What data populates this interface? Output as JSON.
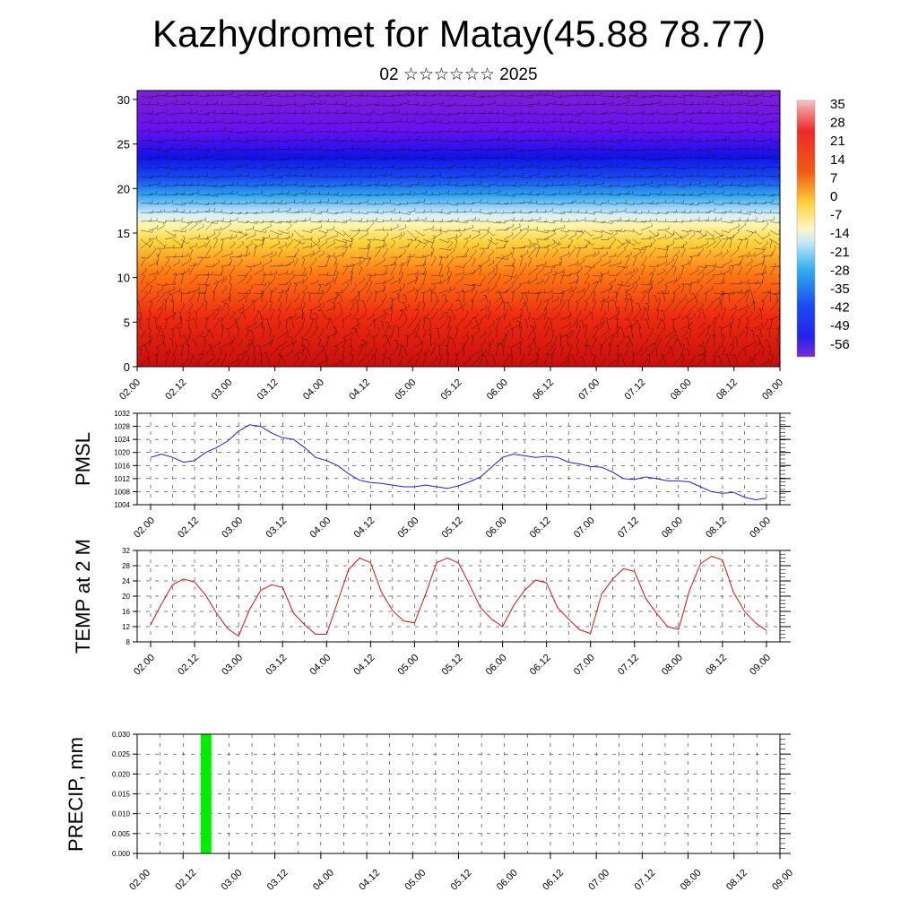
{
  "title": "Kazhydromet for Matay(45.88 78.77)",
  "subtitle": "02 ☆☆☆☆☆☆ 2025",
  "colors": {
    "pmsl_line": "#1a1aff",
    "temp_line": "#e01010",
    "precip_bar": "#00ee00"
  },
  "chart_data": [
    {
      "id": "wind-temperature-section",
      "type": "heatmap",
      "xlabel": "",
      "ylabel": "",
      "ylim": [
        0,
        31
      ],
      "y_ticks": [
        "0",
        "5",
        "10",
        "15",
        "20",
        "25",
        "30"
      ],
      "x_ticks": [
        "02.00",
        "02.12",
        "03.00",
        "03.12",
        "04.00",
        "04.12",
        "05.00",
        "05.12",
        "06.00",
        "06.12",
        "07.00",
        "07.12",
        "08.00",
        "08.12",
        "09.00"
      ],
      "colorbar_labels": [
        "35",
        "28",
        "21",
        "14",
        "7",
        "0",
        "-7",
        "-14",
        "-21",
        "-28",
        "-35",
        "-42",
        "-49",
        "-56"
      ],
      "colorbar_range": [
        -60,
        40
      ],
      "overlay": "wind barbs",
      "description_values": {
        "top_layer_temp": -55,
        "surface_temp": 30
      }
    },
    {
      "id": "pmsl",
      "type": "line",
      "ylabel": "PMSL",
      "ylim": [
        1004,
        1032
      ],
      "y_ticks": [
        "1004",
        "1008",
        "1012",
        "1016",
        "1020",
        "1024",
        "1028",
        "1032"
      ],
      "x_ticks": [
        "02.00",
        "02.12",
        "03.00",
        "03.12",
        "04.00",
        "04.12",
        "05.00",
        "05.12",
        "06.00",
        "06.12",
        "07.00",
        "07.12",
        "08.00",
        "08.12",
        "09.00"
      ],
      "series": [
        {
          "values": [
            1018.5,
            1019.5,
            1018.5,
            1017,
            1017.5,
            1020,
            1021.5,
            1023.5,
            1026.5,
            1028.5,
            1028,
            1026,
            1024.5,
            1024,
            1021.5,
            1018.5,
            1017.5,
            1016,
            1013.5,
            1011.5,
            1010.8,
            1010.5,
            1010,
            1009.5,
            1009.5,
            1010,
            1009.5,
            1009,
            1009.8,
            1011,
            1012.5,
            1015.5,
            1018.5,
            1019.5,
            1019,
            1018.5,
            1018.8,
            1018.5,
            1017,
            1016.5,
            1015.7,
            1015.5,
            1014,
            1012,
            1011.7,
            1012.5,
            1012,
            1011.3,
            1011.3,
            1011,
            1009.5,
            1008,
            1007.5,
            1007.8,
            1006.3,
            1005.5,
            1006
          ]
        }
      ]
    },
    {
      "id": "temp2m",
      "type": "line",
      "ylabel": "TEMP at 2 M",
      "ylim": [
        8,
        32
      ],
      "y_ticks": [
        "8",
        "12",
        "16",
        "20",
        "24",
        "28",
        "32"
      ],
      "x_ticks": [
        "02.00",
        "02.12",
        "03.00",
        "03.12",
        "04.00",
        "04.12",
        "05.00",
        "05.12",
        "06.00",
        "06.12",
        "07.00",
        "07.12",
        "08.00",
        "08.12",
        "09.00"
      ],
      "series": [
        {
          "values": [
            12.5,
            18,
            23,
            24.5,
            23.7,
            20.3,
            15.5,
            11.5,
            9.5,
            16.5,
            21.5,
            23,
            22.3,
            15.5,
            12.5,
            10,
            10,
            18.5,
            27,
            30,
            28.8,
            21,
            16.2,
            13.5,
            13,
            20.5,
            28.8,
            30,
            28.7,
            23,
            17,
            14,
            12,
            17.5,
            21.5,
            24.2,
            23.5,
            17,
            14,
            11.2,
            10.2,
            20.5,
            24.5,
            27.2,
            26.5,
            19.5,
            15.5,
            12,
            11.3,
            21.5,
            28.5,
            30.5,
            29.5,
            21,
            16,
            13,
            11
          ]
        }
      ]
    },
    {
      "id": "precip",
      "type": "bar",
      "ylabel": "PRECIP, mm",
      "ylim": [
        0,
        0.03
      ],
      "y_ticks": [
        "0.000",
        "0.005",
        "0.010",
        "0.015",
        "0.020",
        "0.025",
        "0.030"
      ],
      "x_ticks": [
        "02.00",
        "02.12",
        "03.00",
        "03.12",
        "04.00",
        "04.12",
        "05.00",
        "05.12",
        "06.00",
        "06.12",
        "07.00",
        "07.12",
        "08.00",
        "08.12",
        "09.00"
      ],
      "bars": [
        {
          "x_hours": 18,
          "value": 0.03
        }
      ]
    }
  ]
}
